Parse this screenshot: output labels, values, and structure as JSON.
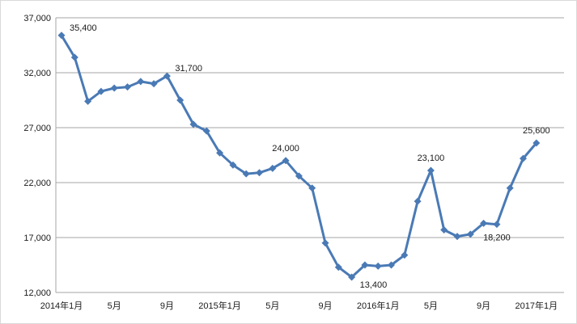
{
  "chart_data": {
    "type": "line",
    "title": "",
    "xlabel": "",
    "ylabel": "",
    "ylim": [
      12000,
      37000
    ],
    "y_ticks": [
      12000,
      17000,
      22000,
      27000,
      32000,
      37000
    ],
    "y_tick_labels": [
      "12,000",
      "17,000",
      "22,000",
      "27,000",
      "32,000",
      "37,000"
    ],
    "grid": "horizontal",
    "legend": "none",
    "series_color": "#4a7ab5",
    "grid_color": "#a6a6a6",
    "x_tick_labels": [
      {
        "index": 0,
        "label": "2014年1月"
      },
      {
        "index": 4,
        "label": "5月"
      },
      {
        "index": 8,
        "label": "9月"
      },
      {
        "index": 12,
        "label": "2015年1月"
      },
      {
        "index": 16,
        "label": "5月"
      },
      {
        "index": 20,
        "label": "9月"
      },
      {
        "index": 24,
        "label": "2016年1月"
      },
      {
        "index": 28,
        "label": "5月"
      },
      {
        "index": 32,
        "label": "9月"
      },
      {
        "index": 36,
        "label": "2017年1月"
      }
    ],
    "values": [
      35400,
      33400,
      29400,
      30300,
      30600,
      30700,
      31200,
      31000,
      31700,
      29500,
      27300,
      26700,
      24700,
      23600,
      22800,
      22900,
      23300,
      24000,
      22600,
      21500,
      16500,
      14300,
      13400,
      14500,
      14400,
      14500,
      15400,
      20300,
      23100,
      17700,
      17100,
      17300,
      18300,
      18200,
      21500,
      24200,
      25600
    ],
    "data_labels": [
      {
        "index": 0,
        "text": "35,400",
        "pos": "above-right"
      },
      {
        "index": 8,
        "text": "31,700",
        "pos": "above-right"
      },
      {
        "index": 17,
        "text": "24,000",
        "pos": "above"
      },
      {
        "index": 22,
        "text": "13,400",
        "pos": "below-right"
      },
      {
        "index": 28,
        "text": "23,100",
        "pos": "above"
      },
      {
        "index": 33,
        "text": "18,200",
        "pos": "below"
      },
      {
        "index": 36,
        "text": "25,600",
        "pos": "above"
      }
    ]
  }
}
